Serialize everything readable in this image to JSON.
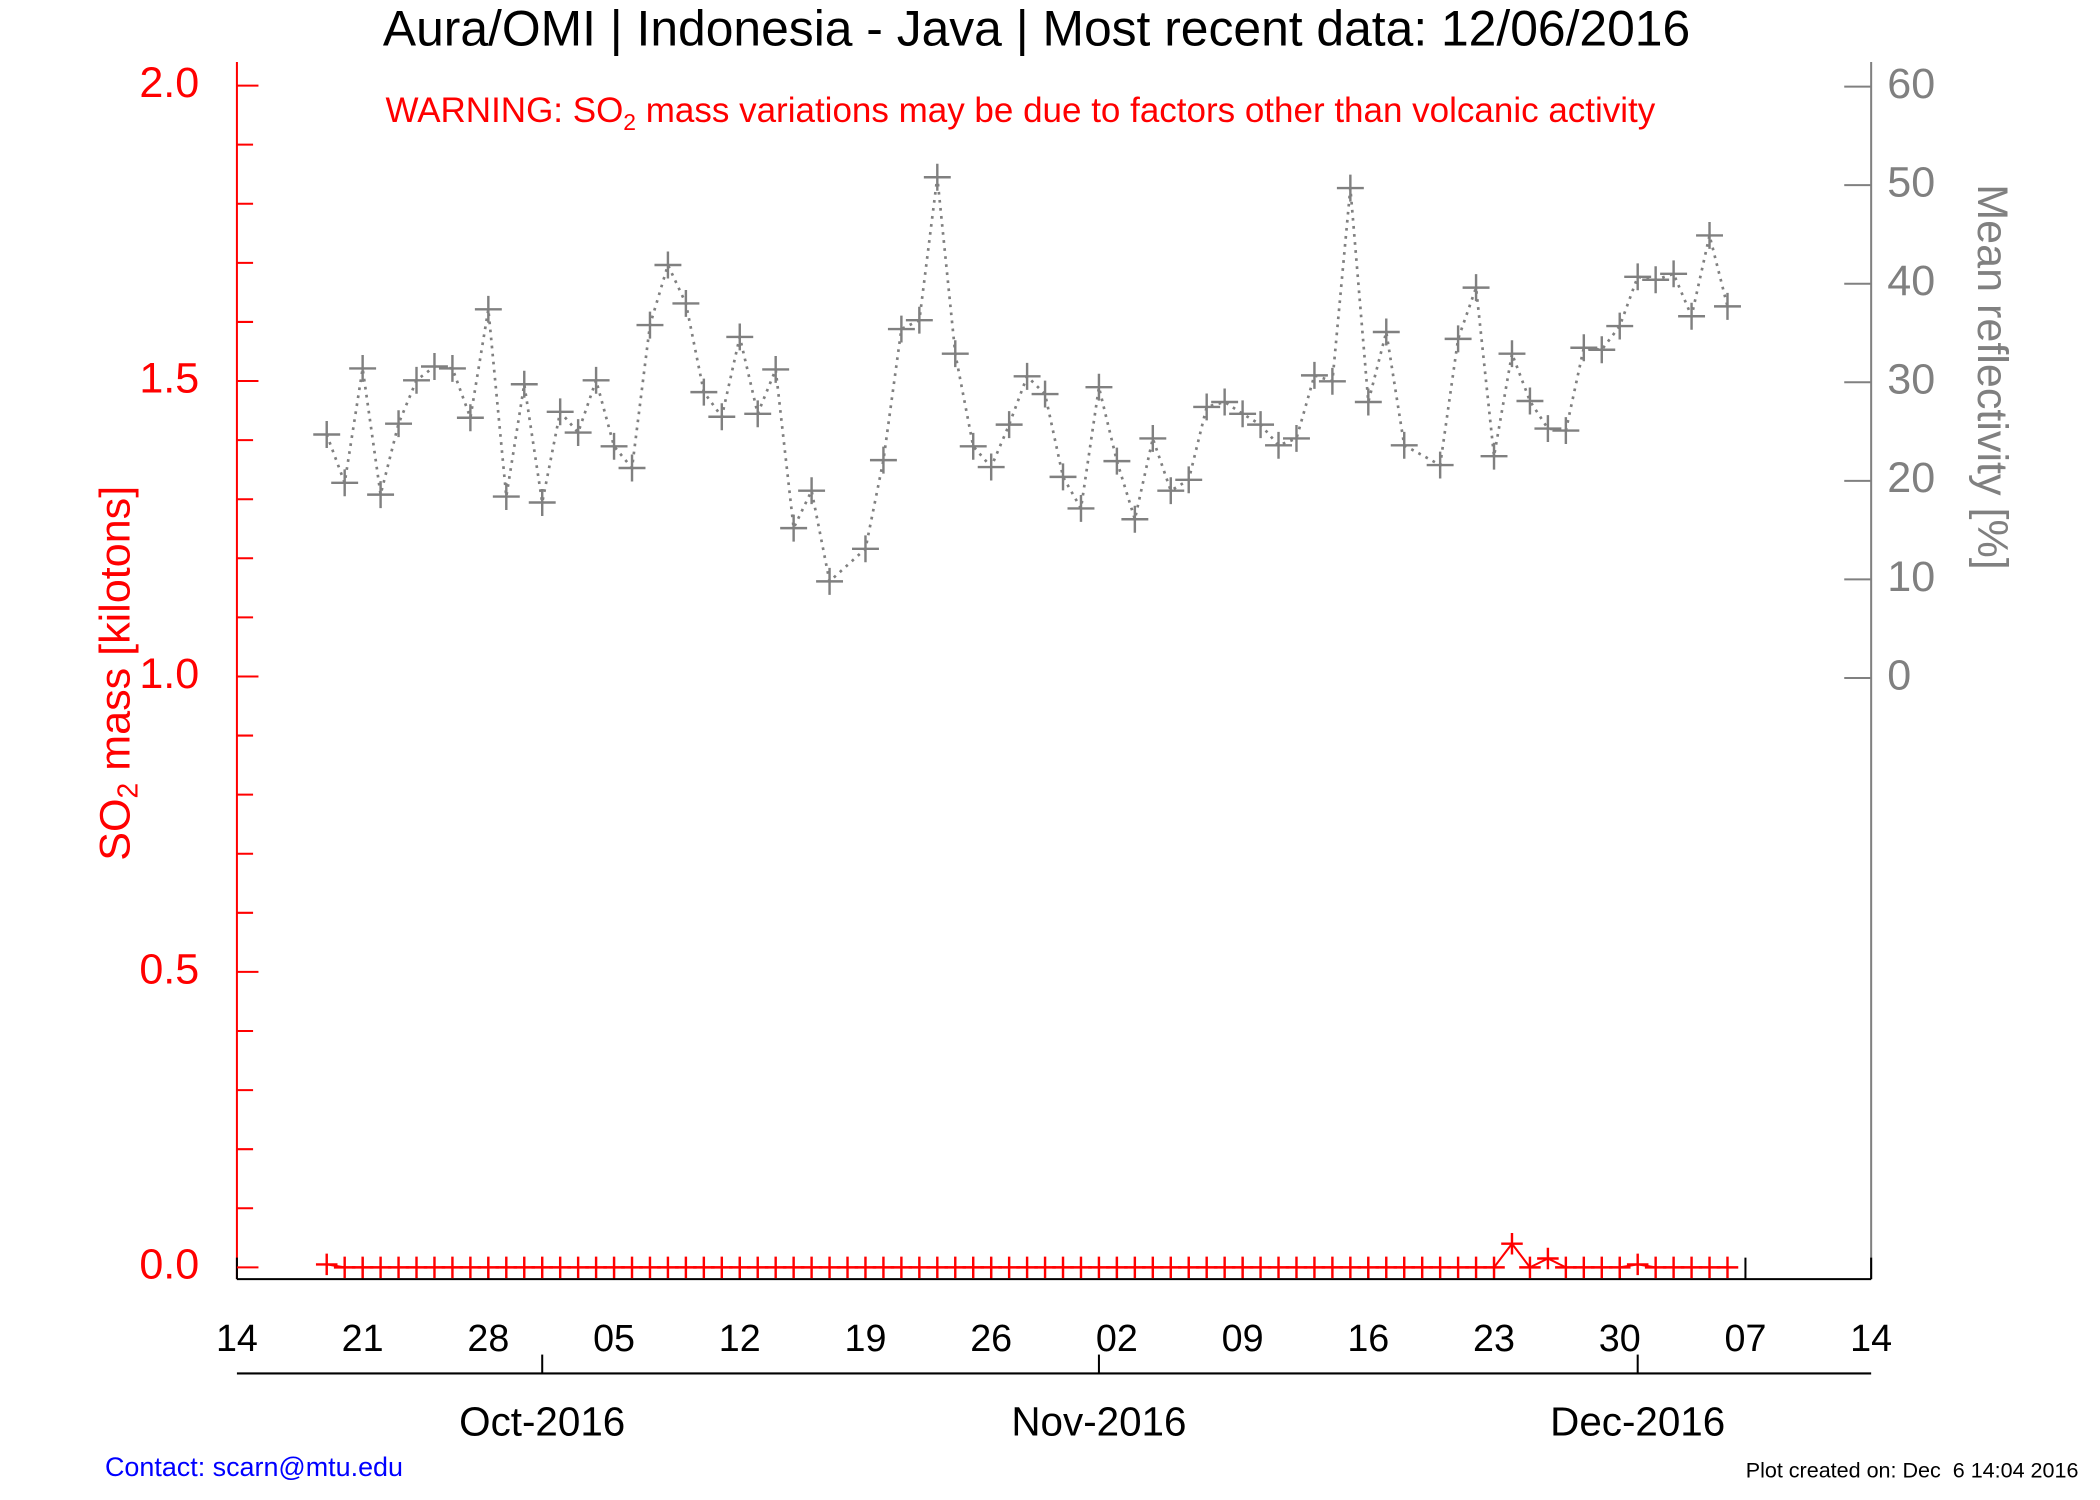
{
  "chart_data": {
    "type": "line",
    "title": "Aura/OMI | Indonesia - Java | Most recent data: 12/06/2016",
    "warning": [
      "WARNING: SO",
      "2",
      " mass variations may be due to factors other than volcanic activity"
    ],
    "ylabel": [
      "SO",
      "2",
      " mass [kilotons]"
    ],
    "y2label": "Mean reflectivity [%]",
    "contact": "Contact: scarn@mtu.edu",
    "plot_created": "Plot created on: Dec  6 14:04 2016",
    "xlim": [
      "2016-09-14",
      "2016-12-14"
    ],
    "xticks": [
      {
        "value": "2016-09-14",
        "label": "14"
      },
      {
        "value": "2016-09-21",
        "label": "21"
      },
      {
        "value": "2016-09-28",
        "label": "28"
      },
      {
        "value": "2016-10-05",
        "label": "05"
      },
      {
        "value": "2016-10-12",
        "label": "12"
      },
      {
        "value": "2016-10-19",
        "label": "19"
      },
      {
        "value": "2016-10-26",
        "label": "26"
      },
      {
        "value": "2016-11-02",
        "label": "02"
      },
      {
        "value": "2016-11-09",
        "label": "09"
      },
      {
        "value": "2016-11-16",
        "label": "16"
      },
      {
        "value": "2016-11-23",
        "label": "23"
      },
      {
        "value": "2016-11-30",
        "label": "30"
      },
      {
        "value": "2016-12-07",
        "label": "07"
      },
      {
        "value": "2016-12-14",
        "label": "14"
      }
    ],
    "month_ticks": [
      {
        "value": "2016-10-01",
        "label": "Oct-2016"
      },
      {
        "value": "2016-11-01",
        "label": "Nov-2016"
      },
      {
        "value": "2016-12-01",
        "label": "Dec-2016"
      }
    ],
    "ylim": [
      -0.02,
      2.04
    ],
    "yticks": [
      {
        "value": 0,
        "label": "0.0"
      },
      {
        "value": 0.5,
        "label": "0.5"
      },
      {
        "value": 1,
        "label": "1.0"
      },
      {
        "value": 1.5,
        "label": "1.5"
      },
      {
        "value": 2,
        "label": "2.0"
      }
    ],
    "yminorticks": [
      0.1,
      0.2,
      0.3,
      0.4,
      0.6,
      0.7,
      0.8,
      0.9,
      1.1,
      1.2,
      1.3,
      1.4,
      1.6,
      1.7,
      1.8,
      1.9
    ],
    "y2lim": [
      -61,
      62.5
    ],
    "y2ticks": [
      0,
      10,
      20,
      30,
      40,
      50,
      60
    ],
    "series": [
      {
        "color": "#ff0000",
        "x": [
          "2016-09-19",
          "2016-09-20",
          "2016-09-21",
          "2016-09-22",
          "2016-09-23",
          "2016-09-24",
          "2016-09-25",
          "2016-09-26",
          "2016-09-27",
          "2016-09-28",
          "2016-09-29",
          "2016-09-30",
          "2016-10-01",
          "2016-10-02",
          "2016-10-03",
          "2016-10-04",
          "2016-10-05",
          "2016-10-06",
          "2016-10-07",
          "2016-10-08",
          "2016-10-09",
          "2016-10-10",
          "2016-10-11",
          "2016-10-12",
          "2016-10-13",
          "2016-10-14",
          "2016-10-15",
          "2016-10-16",
          "2016-10-17",
          "2016-10-18",
          "2016-10-19",
          "2016-10-20",
          "2016-10-21",
          "2016-10-22",
          "2016-10-23",
          "2016-10-24",
          "2016-10-25",
          "2016-10-26",
          "2016-10-27",
          "2016-10-28",
          "2016-10-29",
          "2016-10-30",
          "2016-10-31",
          "2016-11-01",
          "2016-11-02",
          "2016-11-03",
          "2016-11-04",
          "2016-11-05",
          "2016-11-06",
          "2016-11-07",
          "2016-11-08",
          "2016-11-09",
          "2016-11-10",
          "2016-11-11",
          "2016-11-12",
          "2016-11-13",
          "2016-11-14",
          "2016-11-15",
          "2016-11-16",
          "2016-11-17",
          "2016-11-18",
          "2016-11-19",
          "2016-11-20",
          "2016-11-21",
          "2016-11-22",
          "2016-11-23",
          "2016-11-24",
          "2016-11-25",
          "2016-11-26",
          "2016-11-27",
          "2016-11-28",
          "2016-11-29",
          "2016-11-30",
          "2016-12-01",
          "2016-12-02",
          "2016-12-03",
          "2016-12-04",
          "2016-12-05",
          "2016-12-06"
        ],
        "values": [
          0.005,
          0,
          0,
          0,
          0,
          0,
          0,
          0,
          0,
          0,
          0,
          0,
          0,
          0,
          0,
          0,
          0,
          0,
          0,
          0,
          0,
          0,
          0,
          0,
          0,
          0,
          0,
          0,
          0,
          0,
          0,
          0,
          0,
          0,
          0,
          0,
          0,
          0,
          0,
          0,
          0,
          0,
          0,
          0,
          0,
          0,
          0,
          0,
          0,
          0,
          0,
          0,
          0,
          0,
          0,
          0,
          0,
          0,
          0,
          0,
          0,
          0,
          0,
          0,
          0,
          0,
          0.04,
          0,
          0.015,
          0,
          0,
          0,
          0,
          0.005,
          0,
          0,
          0,
          0,
          0
        ]
      },
      {
        "color": "#808080",
        "axis": "y2",
        "x": [
          "2016-09-19",
          "2016-09-20",
          "2016-09-21",
          "2016-09-22",
          "2016-09-23",
          "2016-09-24",
          "2016-09-25",
          "2016-09-26",
          "2016-09-27",
          "2016-09-28",
          "2016-09-29",
          "2016-09-30",
          "2016-10-01",
          "2016-10-02",
          "2016-10-03",
          "2016-10-04",
          "2016-10-05",
          "2016-10-06",
          "2016-10-07",
          "2016-10-08",
          "2016-10-09",
          "2016-10-10",
          "2016-10-11",
          "2016-10-12",
          "2016-10-13",
          "2016-10-14",
          "2016-10-15",
          "2016-10-16",
          "2016-10-17",
          "2016-10-19",
          "2016-10-20",
          "2016-10-21",
          "2016-10-22",
          "2016-10-23",
          "2016-10-24",
          "2016-10-25",
          "2016-10-26",
          "2016-10-27",
          "2016-10-28",
          "2016-10-29",
          "2016-10-30",
          "2016-10-31",
          "2016-11-01",
          "2016-11-02",
          "2016-11-03",
          "2016-11-04",
          "2016-11-05",
          "2016-11-06",
          "2016-11-07",
          "2016-11-08",
          "2016-11-09",
          "2016-11-10",
          "2016-11-11",
          "2016-11-12",
          "2016-11-13",
          "2016-11-14",
          "2016-11-15",
          "2016-11-16",
          "2016-11-17",
          "2016-11-18",
          "2016-11-20",
          "2016-11-21",
          "2016-11-22",
          "2016-11-23",
          "2016-11-24",
          "2016-11-25",
          "2016-11-26",
          "2016-11-27",
          "2016-11-28",
          "2016-11-29",
          "2016-11-30",
          "2016-12-01",
          "2016-12-02",
          "2016-12-03",
          "2016-12-04",
          "2016-12-05",
          "2016-12-06"
        ],
        "values": [
          24.7,
          19.8,
          31.4,
          18.6,
          25.8,
          30.2,
          31.6,
          31.4,
          26.4,
          37.4,
          18.4,
          29.8,
          17.8,
          27,
          24.9,
          30.2,
          23.5,
          21.3,
          35.8,
          41.9,
          38,
          29,
          26.5,
          34.6,
          26.8,
          31.3,
          15.2,
          19,
          9.8,
          13.1,
          22.1,
          35.4,
          36.3,
          50.8,
          32.9,
          23.5,
          21.4,
          25.7,
          30.6,
          28.8,
          20.4,
          17.2,
          29.5,
          22,
          16.1,
          24.3,
          19,
          20.1,
          27.5,
          28,
          26.8,
          25.7,
          23.6,
          24.3,
          30.7,
          30.1,
          49.7,
          28,
          35.1,
          23.6,
          21.6,
          34.4,
          39.6,
          22.5,
          32.9,
          28.1,
          25.3,
          25.1,
          33.5,
          33.3,
          35.7,
          40.7,
          40.4,
          41,
          36.7,
          44.9,
          37.7
        ]
      }
    ]
  }
}
